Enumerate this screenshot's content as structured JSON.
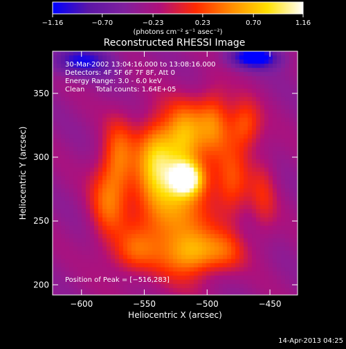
{
  "chart_data": {
    "type": "heatmap",
    "title": "Reconstructed RHESSI Image",
    "xlabel": "Heliocentric X (arcsec)",
    "ylabel": "Heliocentric Y (arcsec)",
    "xlim": [
      -623,
      -428
    ],
    "ylim": [
      192,
      383
    ],
    "x_ticks": [
      -600,
      -550,
      -500,
      -450
    ],
    "x_tick_labels": [
      "−600",
      "−550",
      "−500",
      "−450"
    ],
    "y_ticks": [
      200,
      250,
      300,
      350
    ],
    "y_tick_labels": [
      "200",
      "250",
      "300",
      "350"
    ],
    "colorbar": {
      "min": -1.16,
      "max": 1.16,
      "ticks": [
        -1.16,
        -0.7,
        -0.23,
        0.23,
        0.7,
        1.16
      ],
      "tick_labels": [
        "−1.16",
        "−0.70",
        "−0.23",
        "0.23",
        "0.70",
        "1.16"
      ],
      "label": "(photons cm⁻² s⁻¹ asec⁻²)",
      "colors": [
        "#0000ff",
        "#5b16a6",
        "#80209e",
        "#b0107a",
        "#ff2a00",
        "#ff8c00",
        "#ffe000",
        "#ffffff"
      ]
    },
    "annotations": [
      "30-Mar-2002 13:04:16.000 to 13:08:16.000",
      "Detectors: 4F 5F 6F 7F 8F, Att 0",
      "Energy Range: 3.0 - 6.0 keV",
      "Clean     Total counts: 1.64E+05"
    ],
    "peak_label": "Position of Peak = [−516,283]",
    "peak": [
      -516,
      283
    ],
    "source_blobs": [
      {
        "x": -516,
        "y": 283,
        "w": 1.15,
        "sx": 9,
        "sy": 9
      },
      {
        "x": -528,
        "y": 262,
        "w": 0.85,
        "sx": 22,
        "sy": 36
      },
      {
        "x": -540,
        "y": 300,
        "w": 0.75,
        "sx": 11,
        "sy": 22
      },
      {
        "x": -518,
        "y": 318,
        "w": 0.7,
        "sx": 10,
        "sy": 18
      },
      {
        "x": -495,
        "y": 328,
        "w": 0.7,
        "sx": 10,
        "sy": 18
      },
      {
        "x": -470,
        "y": 325,
        "w": 0.6,
        "sx": 9,
        "sy": 14
      },
      {
        "x": -570,
        "y": 300,
        "w": 0.55,
        "sx": 9,
        "sy": 22
      },
      {
        "x": -580,
        "y": 265,
        "w": 0.55,
        "sx": 10,
        "sy": 25
      },
      {
        "x": -560,
        "y": 225,
        "w": 0.45,
        "sx": 12,
        "sy": 12
      },
      {
        "x": -510,
        "y": 225,
        "w": 0.65,
        "sx": 14,
        "sy": 12
      },
      {
        "x": -485,
        "y": 225,
        "w": 0.4,
        "sx": 12,
        "sy": 12
      },
      {
        "x": -480,
        "y": 280,
        "w": 0.5,
        "sx": 10,
        "sy": 22
      },
      {
        "x": -455,
        "y": 270,
        "w": 0.35,
        "sx": 8,
        "sy": 25
      }
    ],
    "negative_lobes": [
      {
        "x": -462,
        "y": 378,
        "w": -1.0,
        "sx": 14,
        "sy": 6
      },
      {
        "x": -600,
        "y": 375,
        "w": -0.7,
        "sx": 18,
        "sy": 8
      }
    ]
  },
  "footer": {
    "date_stamp": "14-Apr-2013 04:25"
  }
}
